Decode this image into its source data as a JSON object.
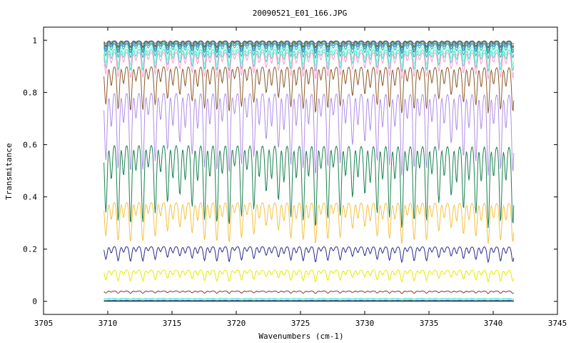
{
  "chart_data": {
    "type": "line",
    "title": "20090521_E01_166.JPG",
    "xlabel": "Wavenumbers (cm-1)",
    "ylabel": "Transmitance",
    "xlim": [
      3705,
      3745
    ],
    "ylim": [
      -0.05,
      1.05
    ],
    "x_ticks": [
      "3705",
      "3710",
      "3715",
      "3720",
      "3725",
      "3730",
      "3735",
      "3740",
      "3745"
    ],
    "y_ticks": [
      "0",
      "0.2",
      "0.4",
      "0.6",
      "0.8",
      "1"
    ],
    "x_range_data": [
      3709.7,
      3741.6
    ],
    "grid": false,
    "legend": "none",
    "line_period_cm1": 0.96,
    "series": [
      {
        "color": "#6a5acd",
        "baseline": 0.998,
        "min": 0.985
      },
      {
        "color": "#2e8b57",
        "baseline": 0.997,
        "min": 0.975
      },
      {
        "color": "#8b4513",
        "baseline": 0.996,
        "min": 0.97
      },
      {
        "color": "#3cb371",
        "baseline": 0.995,
        "min": 0.96
      },
      {
        "color": "#4169e1",
        "baseline": 0.99,
        "min": 0.95
      },
      {
        "color": "#20b2aa",
        "baseline": 0.985,
        "min": 0.93
      },
      {
        "color": "#7fffd4",
        "baseline": 0.975,
        "min": 0.9
      },
      {
        "color": "#40e0d0",
        "baseline": 0.965,
        "min": 0.88
      },
      {
        "color": "#ff99cc",
        "baseline": 0.955,
        "min": 0.85
      },
      {
        "color": "#8b5a2b",
        "baseline": 0.9,
        "min": 0.72
      },
      {
        "color": "#b08de6",
        "baseline": 0.8,
        "min": 0.48
      },
      {
        "color": "#1a8050",
        "baseline": 0.6,
        "min": 0.28
      },
      {
        "color": "#f5c242",
        "baseline": 0.38,
        "min": 0.22
      },
      {
        "color": "#2a2a8c",
        "baseline": 0.21,
        "min": 0.15
      },
      {
        "color": "#e8e800",
        "baseline": 0.12,
        "min": 0.075
      },
      {
        "color": "#8b3a2a",
        "baseline": 0.04,
        "min": 0.03
      },
      {
        "color": "#40e0d0",
        "baseline": 0.012,
        "min": 0.008
      },
      {
        "color": "#1a9a50",
        "baseline": 0.005,
        "min": 0.003
      },
      {
        "color": "#0000cd",
        "baseline": 0.002,
        "min": 0.0
      },
      {
        "color": "#cc2244",
        "baseline": 0.0,
        "min": 0.0
      }
    ]
  }
}
